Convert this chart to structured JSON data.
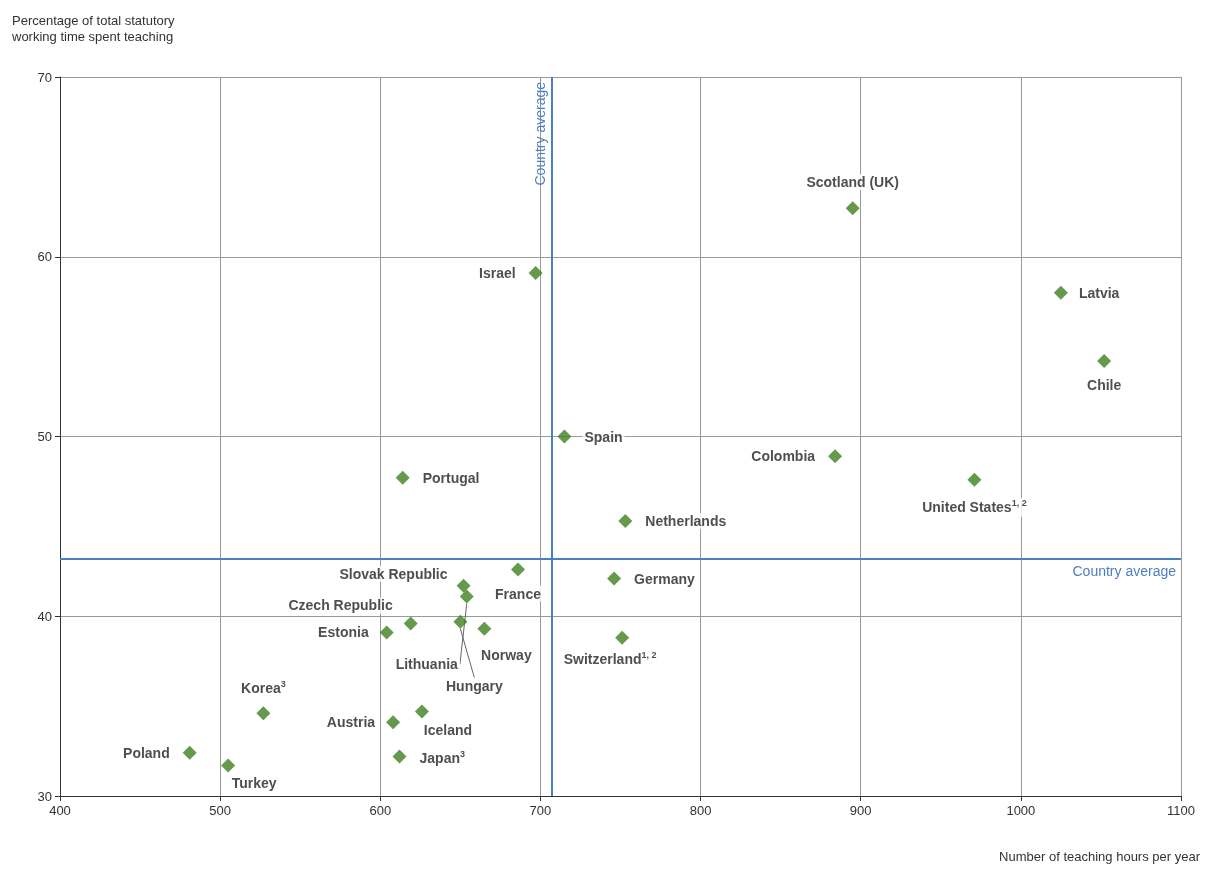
{
  "chart_data": {
    "type": "scatter",
    "ylabel": "Percentage of total statutory working time spent teaching",
    "xlabel": "Number of teaching hours per year",
    "xlim": [
      400,
      1100
    ],
    "xticks": [
      400,
      500,
      600,
      700,
      800,
      900,
      1000,
      1100
    ],
    "ylim": [
      30,
      70
    ],
    "yticks": [
      30,
      40,
      50,
      60,
      70
    ],
    "grid": true,
    "marker": "diamond",
    "ref_lines": [
      {
        "axis": "x",
        "value": 707,
        "label": "Country average",
        "color": "#4a7fc1"
      },
      {
        "axis": "y",
        "value": 43.2,
        "label": "Country average",
        "color": "#4a7fc1"
      }
    ],
    "series": [
      {
        "name": "Scotland (UK)",
        "color": "#3f7f1f",
        "x": [
          895
        ],
        "values": [
          62.7
        ]
      },
      {
        "name": "Israel",
        "color": "#3f7f1f",
        "x": [
          697
        ],
        "values": [
          59.1
        ]
      },
      {
        "name": "Latvia",
        "color": "#3f7f1f",
        "x": [
          1025
        ],
        "values": [
          58.0
        ]
      },
      {
        "name": "Chile",
        "color": "#3f7f1f",
        "x": [
          1052
        ],
        "values": [
          54.2
        ]
      },
      {
        "name": "Spain",
        "color": "#3f7f1f",
        "x": [
          715
        ],
        "values": [
          50.0
        ]
      },
      {
        "name": "Colombia",
        "color": "#3f7f1f",
        "x": [
          884
        ],
        "values": [
          48.9
        ]
      },
      {
        "name": "United States$^{1, 2}$",
        "color": "#3f7f1f",
        "x": [
          971
        ],
        "values": [
          47.6
        ]
      },
      {
        "name": "Portugal",
        "color": "#3f7f1f",
        "x": [
          614
        ],
        "values": [
          47.7
        ]
      },
      {
        "name": "Netherlands",
        "color": "#3f7f1f",
        "x": [
          753
        ],
        "values": [
          45.3
        ]
      },
      {
        "name": "France",
        "color": "#3f7f1f",
        "x": [
          686
        ],
        "values": [
          42.6
        ]
      },
      {
        "name": "Germany",
        "color": "#3f7f1f",
        "x": [
          746
        ],
        "values": [
          42.1
        ]
      },
      {
        "name": "Slovak Republic",
        "color": "#3f7f1f",
        "x": [
          652
        ],
        "values": [
          41.7
        ]
      },
      {
        "name": "Lithuania",
        "color": "#3f7f1f",
        "x": [
          654
        ],
        "values": [
          41.1
        ]
      },
      {
        "name": "Czech Republic",
        "color": "#3f7f1f",
        "x": [
          619
        ],
        "values": [
          39.6
        ]
      },
      {
        "name": "Estonia",
        "color": "#3f7f1f",
        "x": [
          604
        ],
        "values": [
          39.1
        ]
      },
      {
        "name": "Hungary",
        "color": "#3f7f1f",
        "x": [
          650
        ],
        "values": [
          39.7
        ]
      },
      {
        "name": "Norway",
        "color": "#3f7f1f",
        "x": [
          665
        ],
        "values": [
          39.3
        ]
      },
      {
        "name": "Switzerland$^{1, 2}$",
        "color": "#3f7f1f",
        "x": [
          751
        ],
        "values": [
          38.8
        ]
      },
      {
        "name": "Austria",
        "color": "#3f7f1f",
        "x": [
          608
        ],
        "values": [
          34.1
        ]
      },
      {
        "name": "Iceland",
        "color": "#3f7f1f",
        "x": [
          626
        ],
        "values": [
          34.7
        ]
      },
      {
        "name": "Japan$^{3}$",
        "color": "#3f7f1f",
        "x": [
          612
        ],
        "values": [
          32.2
        ]
      },
      {
        "name": "Korea$^{3}$",
        "color": "#3f7f1f",
        "x": [
          527
        ],
        "values": [
          34.6
        ]
      },
      {
        "name": "Poland",
        "color": "#3f7f1f",
        "x": [
          481
        ],
        "values": [
          32.4
        ]
      },
      {
        "name": "Turkey",
        "color": "#3f7f1f",
        "x": [
          505
        ],
        "values": [
          31.7
        ]
      }
    ]
  }
}
